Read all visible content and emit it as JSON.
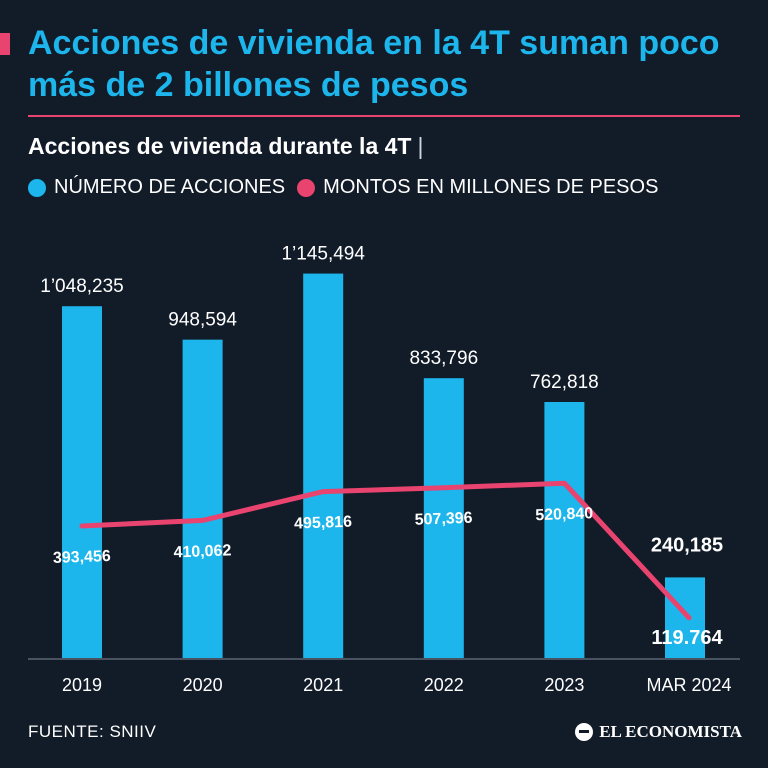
{
  "header": {
    "title": "Acciones de vivienda en la 4T suman poco más de 2 billones de pesos",
    "subtitle": "Acciones de vivienda durante la 4T",
    "subtitle_separator": "|"
  },
  "legend": {
    "items": [
      {
        "label": "NÚMERO DE ACCIONES",
        "color": "#1cb6ec"
      },
      {
        "label": "MONTOS EN MILLONES DE PESOS",
        "color": "#e8446f"
      }
    ]
  },
  "chart_data": {
    "type": "bar",
    "categories": [
      "2019",
      "2020",
      "2021",
      "2022",
      "2023",
      "MAR 2024"
    ],
    "series": [
      {
        "name": "NÚMERO DE ACCIONES",
        "type": "bar",
        "color": "#1cb6ec",
        "values": [
          1048235,
          948594,
          1145494,
          833796,
          762818,
          240185
        ],
        "labels": [
          "1’048,235",
          "948,594",
          "1’145,494",
          "833,796",
          "762,818",
          "240,185"
        ]
      },
      {
        "name": "MONTOS EN MILLONES DE PESOS",
        "type": "line",
        "color": "#e8446f",
        "values": [
          393456,
          410062,
          495816,
          507396,
          520840,
          119764
        ],
        "labels": [
          "393,456",
          "410,062",
          "495,816",
          "507,396",
          "520,840",
          "119.764"
        ]
      }
    ],
    "ylim": [
      0,
      1180000
    ],
    "xlabel": "",
    "ylabel": "",
    "legend_position": "top",
    "grid": false
  },
  "footer": {
    "source": "FUENTE: SNIIV",
    "brand": "EL ECONOMISTA"
  }
}
